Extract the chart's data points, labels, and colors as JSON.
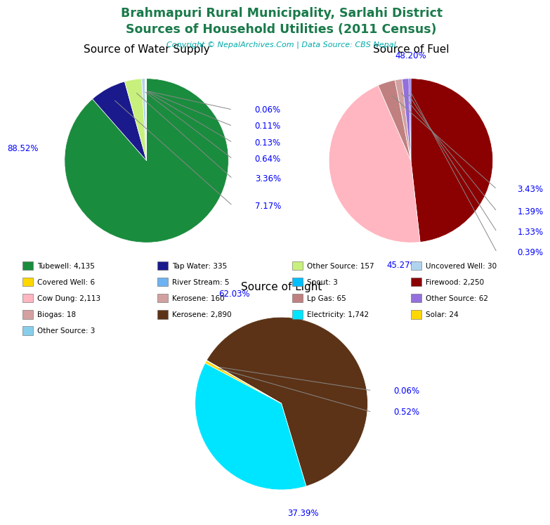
{
  "title_line1": "Brahmapuri Rural Municipality, Sarlahi District",
  "title_line2": "Sources of Household Utilities (2011 Census)",
  "copyright": "Copyright © NepalArchives.Com | Data Source: CBS Nepal",
  "title_color": "#1a7a4a",
  "copyright_color": "#00aaaa",
  "water_title": "Source of Water Supply",
  "water_values": [
    4135,
    335,
    157,
    30,
    6,
    5,
    3
  ],
  "water_pcts": [
    "88.52%",
    "7.17%",
    "3.36%",
    "0.64%",
    "0.13%",
    "0.11%",
    "0.06%"
  ],
  "water_colors": [
    "#1a8c3e",
    "#1a1a8c",
    "#c8f07d",
    "#b0d4f0",
    "#ffd700",
    "#6db3f2",
    "#00bfff"
  ],
  "fuel_title": "Source of Fuel",
  "fuel_values": [
    2250,
    2113,
    160,
    65,
    62,
    18
  ],
  "fuel_pcts": [
    "48.20%",
    "45.27%",
    "3.43%",
    "1.39%",
    "1.33%",
    "0.39%"
  ],
  "fuel_colors": [
    "#8b0000",
    "#ffb6c1",
    "#c08080",
    "#d2a0a0",
    "#9370db",
    "#7b68ee"
  ],
  "light_title": "Source of Light",
  "light_values": [
    2890,
    1742,
    24,
    3
  ],
  "light_pcts": [
    "62.03%",
    "37.39%",
    "0.52%",
    "0.06%"
  ],
  "light_colors": [
    "#5c3317",
    "#00e5ff",
    "#ffd700",
    "#d3d3d3"
  ],
  "legend_col1": [
    [
      "Tubewell: 4,135",
      "#1a8c3e"
    ],
    [
      "Covered Well: 6",
      "#ffd700"
    ],
    [
      "Cow Dung: 2,113",
      "#ffb6c1"
    ],
    [
      "Biogas: 18",
      "#d4a0a0"
    ],
    [
      "Other Source: 3",
      "#87ceeb"
    ]
  ],
  "legend_col2": [
    [
      "Tap Water: 335",
      "#1a1a8c"
    ],
    [
      "River Stream: 5",
      "#6db3f2"
    ],
    [
      "Kerosene: 160",
      "#d2a0a0"
    ],
    [
      "Kerosene: 2,890",
      "#5c3317"
    ],
    null
  ],
  "legend_col3": [
    [
      "Other Source: 157",
      "#c8f07d"
    ],
    [
      "Spout: 3",
      "#00bfff"
    ],
    [
      "Lp Gas: 65",
      "#c08080"
    ],
    [
      "Electricity: 1,742",
      "#00e5ff"
    ],
    null
  ],
  "legend_col4": [
    [
      "Uncovered Well: 30",
      "#b0d4f0"
    ],
    [
      "Firewood: 2,250",
      "#8b0000"
    ],
    [
      "Other Source: 62",
      "#9370db"
    ],
    [
      "Solar: 24",
      "#ffd700"
    ],
    null
  ]
}
